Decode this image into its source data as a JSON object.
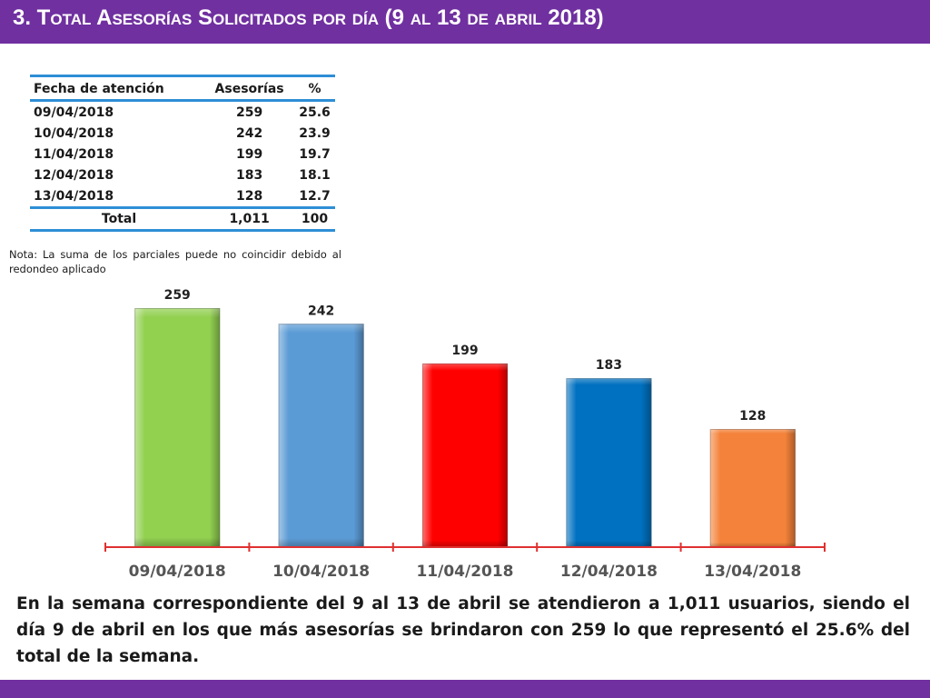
{
  "header": {
    "title": "3.  Total Asesorías Solicitados por día  (9 al 13 de abril 2018)"
  },
  "table": {
    "headers": [
      "Fecha de atención",
      "Asesorías",
      "%"
    ],
    "rows": [
      [
        "09/04/2018",
        "259",
        "25.6"
      ],
      [
        "10/04/2018",
        "242",
        "23.9"
      ],
      [
        "11/04/2018",
        "199",
        "19.7"
      ],
      [
        "12/04/2018",
        "183",
        "18.1"
      ],
      [
        "13/04/2018",
        "128",
        "12.7"
      ]
    ],
    "total": [
      "Total",
      "1,011",
      "100"
    ]
  },
  "note": "Nota: La suma de los parciales puede no coincidir debido al redondeo aplicado",
  "chart_data": {
    "type": "bar",
    "categories": [
      "09/04/2018",
      "10/04/2018",
      "11/04/2018",
      "12/04/2018",
      "13/04/2018"
    ],
    "values": [
      259,
      242,
      199,
      183,
      128
    ],
    "colors": [
      "#92d050",
      "#5b9bd5",
      "#ff0000",
      "#0070c0",
      "#f4823a"
    ],
    "axis_color": "#e03030",
    "title": "",
    "xlabel": "",
    "ylabel": "",
    "ylim": [
      0,
      259
    ],
    "grid": false,
    "legend": "none"
  },
  "summary": "En la semana correspondiente del 9 al 13 de abril se atendieron a 1,011 usuarios, siendo el día 9 de abril en los que más asesorías se brindaron con 259 lo que representó el 25.6% del total de la semana."
}
